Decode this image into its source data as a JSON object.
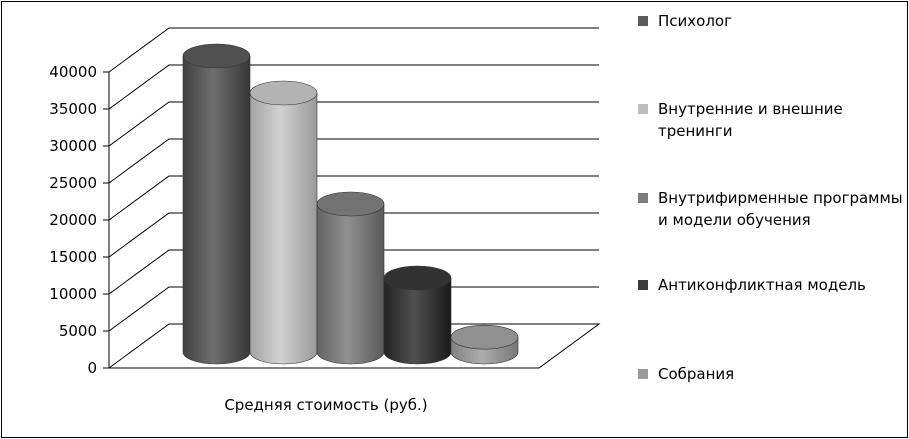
{
  "chart_data": {
    "type": "bar",
    "style": "3d-cylinder",
    "title": "",
    "xlabel": "Средняя стоимость (руб.)",
    "ylabel": "",
    "ylim": [
      0,
      40000
    ],
    "yticks": [
      "0",
      "5000",
      "10000",
      "15000",
      "20000",
      "25000",
      "30000",
      "35000",
      "40000"
    ],
    "grid": true,
    "legend_position": "right",
    "categories": [
      "Средняя стоимость (руб.)"
    ],
    "series": [
      {
        "name": "Психолог",
        "values": [
          40000
        ],
        "color": "#5a5a5a"
      },
      {
        "name": "Внутренние и внешние тренинги",
        "values": [
          35000
        ],
        "color": "#bdbdbd"
      },
      {
        "name": "Внутрифирменные программы и модели обучения",
        "values": [
          20000
        ],
        "color": "#7c7c7c"
      },
      {
        "name": "Антиконфликтная модель",
        "values": [
          10000
        ],
        "color": "#3c3c3c"
      },
      {
        "name": "Собрания",
        "values": [
          2000
        ],
        "color": "#9a9a9a"
      }
    ]
  }
}
